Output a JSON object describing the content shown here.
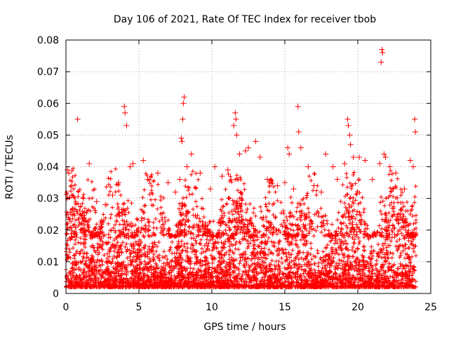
{
  "chart_data": {
    "type": "scatter",
    "title": "Day 106 of 2021, Rate Of TEC Index for receiver tbob",
    "xlabel": "GPS time / hours",
    "ylabel": "ROTI / TECUs",
    "xlim": [
      0,
      25
    ],
    "ylim": [
      0,
      0.08
    ],
    "xticks": [
      "0",
      "5",
      "10",
      "15",
      "20",
      "25"
    ],
    "yticks": [
      "0",
      "0.01",
      "0.02",
      "0.03",
      "0.04",
      "0.05",
      "0.06",
      "0.07",
      "0.08"
    ],
    "grid": true,
    "marker": "+",
    "marker_color": "#ff0000",
    "series": [
      {
        "name": "",
        "points": [
          [
            0.1,
            0.039
          ],
          [
            0.2,
            0.038
          ],
          [
            0.4,
            0.034
          ],
          [
            0.8,
            0.055
          ],
          [
            1.2,
            0.03
          ],
          [
            1.6,
            0.041
          ],
          [
            2.1,
            0.029
          ],
          [
            2.7,
            0.028
          ],
          [
            3.2,
            0.031
          ],
          [
            3.6,
            0.035
          ],
          [
            4.0,
            0.059
          ],
          [
            4.05,
            0.057
          ],
          [
            4.15,
            0.053
          ],
          [
            4.4,
            0.04
          ],
          [
            4.6,
            0.041
          ],
          [
            5.3,
            0.042
          ],
          [
            5.6,
            0.036
          ],
          [
            6.3,
            0.038
          ],
          [
            7.0,
            0.035
          ],
          [
            7.5,
            0.032
          ],
          [
            7.8,
            0.036
          ],
          [
            7.9,
            0.049
          ],
          [
            7.95,
            0.048
          ],
          [
            8.0,
            0.055
          ],
          [
            8.05,
            0.06
          ],
          [
            8.1,
            0.062
          ],
          [
            8.3,
            0.04
          ],
          [
            8.6,
            0.044
          ],
          [
            9.2,
            0.038
          ],
          [
            9.9,
            0.033
          ],
          [
            10.2,
            0.04
          ],
          [
            10.7,
            0.037
          ],
          [
            11.1,
            0.039
          ],
          [
            11.5,
            0.053
          ],
          [
            11.6,
            0.057
          ],
          [
            11.65,
            0.055
          ],
          [
            11.7,
            0.05
          ],
          [
            11.9,
            0.044
          ],
          [
            12.3,
            0.045
          ],
          [
            12.5,
            0.046
          ],
          [
            13.0,
            0.048
          ],
          [
            13.3,
            0.043
          ],
          [
            13.8,
            0.036
          ],
          [
            14.5,
            0.034
          ],
          [
            15.0,
            0.035
          ],
          [
            15.2,
            0.046
          ],
          [
            15.3,
            0.044
          ],
          [
            15.6,
            0.033
          ],
          [
            15.9,
            0.059
          ],
          [
            15.95,
            0.051
          ],
          [
            16.1,
            0.046
          ],
          [
            16.6,
            0.04
          ],
          [
            17.0,
            0.034
          ],
          [
            17.5,
            0.032
          ],
          [
            17.8,
            0.044
          ],
          [
            18.3,
            0.04
          ],
          [
            18.6,
            0.036
          ],
          [
            19.1,
            0.041
          ],
          [
            19.3,
            0.055
          ],
          [
            19.35,
            0.053
          ],
          [
            19.45,
            0.05
          ],
          [
            19.5,
            0.047
          ],
          [
            19.7,
            0.043
          ],
          [
            20.1,
            0.043
          ],
          [
            20.5,
            0.042
          ],
          [
            21.0,
            0.036
          ],
          [
            21.5,
            0.041
          ],
          [
            21.6,
            0.073
          ],
          [
            21.65,
            0.077
          ],
          [
            21.7,
            0.076
          ],
          [
            21.8,
            0.044
          ],
          [
            21.9,
            0.043
          ],
          [
            22.2,
            0.04
          ],
          [
            22.6,
            0.038
          ],
          [
            23.2,
            0.033
          ],
          [
            23.6,
            0.042
          ],
          [
            23.8,
            0.04
          ],
          [
            23.9,
            0.055
          ],
          [
            23.95,
            0.051
          ]
        ]
      }
    ]
  }
}
